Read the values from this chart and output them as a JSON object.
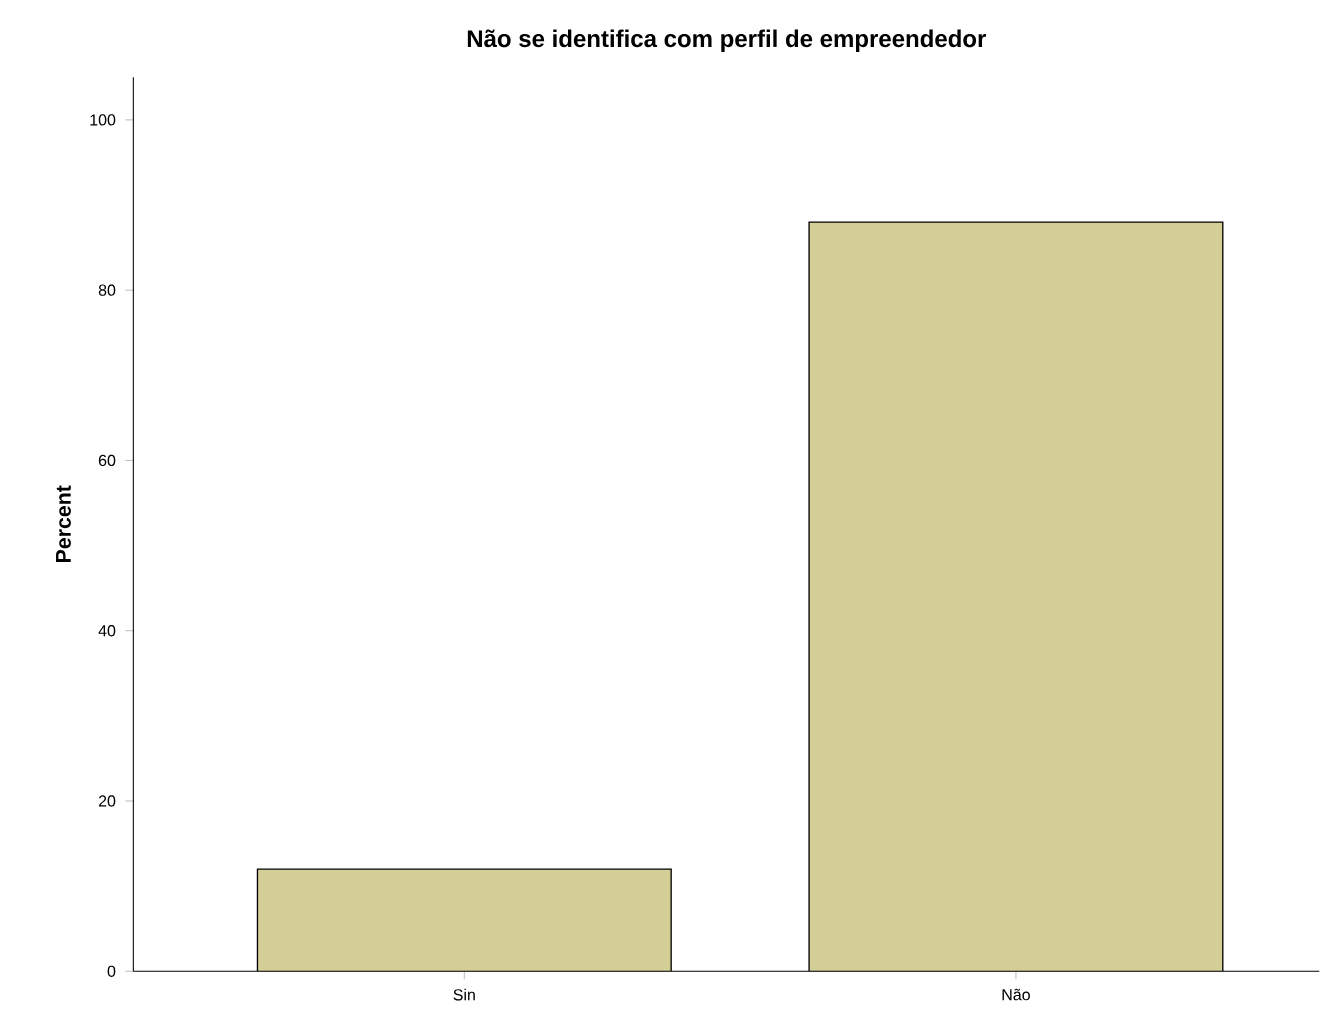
{
  "chart_data": {
    "type": "bar",
    "title": "Não se identifica com perfil de empreendedor",
    "ylabel": "Percent",
    "categories": [
      "Sin",
      "Não"
    ],
    "values": [
      12,
      88
    ],
    "color": "#d3cd96",
    "ylim": [
      0,
      105
    ],
    "yticks": [
      0,
      20,
      40,
      60,
      80,
      100
    ],
    "grid": false
  }
}
